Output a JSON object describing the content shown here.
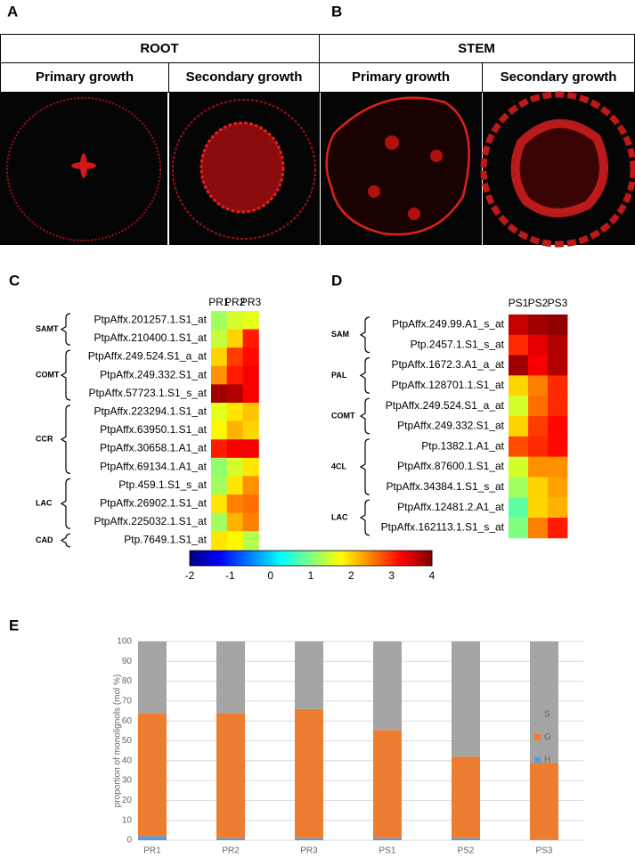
{
  "figure": {
    "panel_labels": [
      "A",
      "B",
      "C",
      "D",
      "E"
    ],
    "tissues": [
      {
        "name": "ROOT",
        "stages": [
          "Primary growth",
          "Secondary growth"
        ]
      },
      {
        "name": "STEM",
        "stages": [
          "Primary growth",
          "Secondary growth"
        ]
      }
    ]
  },
  "chart_data": [
    {
      "type": "heatmap",
      "columns": [
        "PR1",
        "PR2",
        "PR3"
      ],
      "colormap": "jet",
      "vlim": [
        -2,
        4
      ],
      "colorbar_ticks": [
        -2,
        -1,
        0,
        1,
        2,
        3,
        4
      ],
      "groups": [
        {
          "name": "SAMT",
          "rows": [
            {
              "label": "PtpAffx.201257.1.S1_at",
              "values": [
                1.2,
                1.5,
                1.6
              ]
            },
            {
              "label": "PtpAffx.210400.1.S1_at",
              "values": [
                1.4,
                2.0,
                3.1
              ]
            }
          ]
        },
        {
          "name": "COMT",
          "rows": [
            {
              "label": "PtpAffx.249.524.S1_a_at",
              "values": [
                2.0,
                2.9,
                3.2
              ]
            },
            {
              "label": "PtpAffx.249.332.S1_at",
              "values": [
                2.4,
                3.1,
                3.3
              ]
            },
            {
              "label": "PtpAffx.57723.1.S1_s_at",
              "values": [
                3.8,
                3.7,
                3.3
              ]
            }
          ]
        },
        {
          "name": "CCR",
          "rows": [
            {
              "label": "PtpAffx.223294.1.S1_at",
              "values": [
                1.6,
                1.9,
                2.1
              ]
            },
            {
              "label": "PtpAffx.63950.1.S1_at",
              "values": [
                1.8,
                2.2,
                2.0
              ]
            },
            {
              "label": "PtpAffx.30658.1.A1_at",
              "values": [
                3.1,
                3.3,
                3.3
              ]
            },
            {
              "label": "PtpAffx.69134.1.A1_at",
              "values": [
                1.1,
                1.5,
                1.9
              ]
            }
          ]
        },
        {
          "name": "LAC",
          "rows": [
            {
              "label": "Ptp.459.1.S1_s_at",
              "values": [
                1.2,
                1.9,
                2.4
              ]
            },
            {
              "label": "PtpAffx.26902.1.S1_at",
              "values": [
                1.9,
                2.5,
                2.6
              ]
            },
            {
              "label": "PtpAffx.225032.1.S1_at",
              "values": [
                1.2,
                2.2,
                2.5
              ]
            }
          ]
        },
        {
          "name": "CAD",
          "rows": [
            {
              "label": "Ptp.7649.1.S1_at",
              "values": [
                1.9,
                1.8,
                1.3
              ]
            }
          ]
        }
      ]
    },
    {
      "type": "heatmap",
      "columns": [
        "PS1",
        "PS2",
        "PS3"
      ],
      "colormap": "jet",
      "vlim": [
        -2,
        4
      ],
      "groups": [
        {
          "name": "SAM",
          "rows": [
            {
              "label": "PtpAffx.249.99.A1_s_at",
              "values": [
                3.6,
                3.8,
                3.9
              ]
            },
            {
              "label": "Ptp.2457.1.S1_s_at",
              "values": [
                3.0,
                3.4,
                3.7
              ]
            }
          ]
        },
        {
          "name": "PAL",
          "rows": [
            {
              "label": "PtpAffx.1672.3.A1_a_at",
              "values": [
                3.8,
                3.3,
                3.7
              ]
            },
            {
              "label": "PtpAffx.128701.1.S1_at",
              "values": [
                2.0,
                2.5,
                3.0
              ]
            }
          ]
        },
        {
          "name": "COMT",
          "rows": [
            {
              "label": "PtpAffx.249.524.S1_a_at",
              "values": [
                1.5,
                2.6,
                3.0
              ]
            },
            {
              "label": "PtpAffx.249.332.S1_at",
              "values": [
                2.0,
                2.9,
                3.2
              ]
            }
          ]
        },
        {
          "name": "4CL",
          "rows": [
            {
              "label": "Ptp.1382.1.A1_at",
              "values": [
                2.8,
                3.0,
                3.2
              ]
            },
            {
              "label": "PtpAffx.87600.1.S1_at",
              "values": [
                1.5,
                2.4,
                2.4
              ]
            },
            {
              "label": "PtpAffx.34384.1.S1_s_at",
              "values": [
                1.2,
                2.0,
                2.3
              ]
            }
          ]
        },
        {
          "name": "LAC",
          "rows": [
            {
              "label": "PtpAffx.12481.2.A1_at",
              "values": [
                0.8,
                2.0,
                2.2
              ]
            },
            {
              "label": "PtpAffx.162113.1.S1_s_at",
              "values": [
                1.0,
                2.5,
                3.1
              ]
            }
          ]
        }
      ]
    },
    {
      "type": "bar",
      "stacked": true,
      "categories": [
        "PR1",
        "PR2",
        "PR3",
        "PS1",
        "PS2",
        "PS3"
      ],
      "series": [
        {
          "name": "H",
          "color": "#5b9bd5",
          "values": [
            2,
            1,
            1,
            1,
            1,
            0.3
          ]
        },
        {
          "name": "G",
          "color": "#ed7d31",
          "values": [
            62,
            63,
            65,
            54.5,
            41,
            38.7
          ]
        },
        {
          "name": "S",
          "color": "#a5a5a5",
          "values": [
            36,
            36,
            34,
            44.5,
            58,
            61
          ]
        }
      ],
      "ylim": [
        0,
        100
      ],
      "yticks": [
        0,
        10,
        20,
        30,
        40,
        50,
        60,
        70,
        80,
        90,
        100
      ],
      "ylabel": "proportion of monolignols (mol %)",
      "grid": true,
      "legend": "right"
    }
  ]
}
